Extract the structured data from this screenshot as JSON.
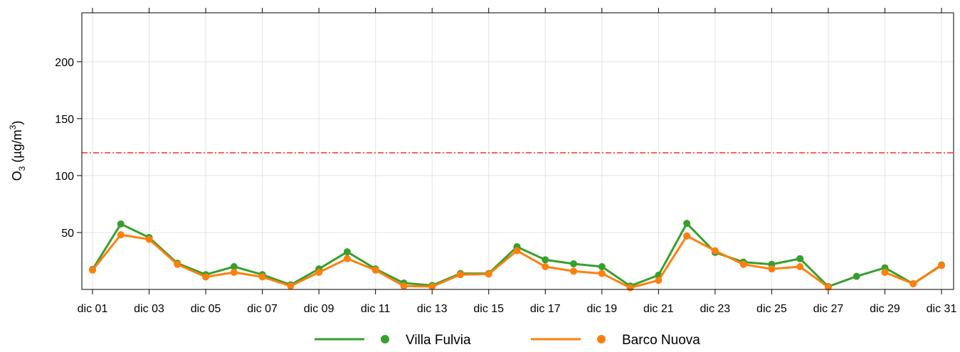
{
  "chart_data": {
    "type": "line",
    "y_label": {
      "base": "O",
      "sub": "3",
      "unit": " (µg/m",
      "sup": "3",
      "end": ")"
    },
    "categories": [
      "dic 01",
      null,
      "dic 03",
      null,
      "dic 05",
      null,
      "dic 07",
      null,
      "dic 09",
      null,
      "dic 11",
      null,
      "dic 13",
      null,
      "dic 15",
      null,
      "dic 17",
      null,
      "dic 19",
      null,
      "dic 21",
      null,
      "dic 23",
      null,
      "dic 25",
      null,
      "dic 27",
      null,
      "dic 29",
      null,
      "dic 31"
    ],
    "series": [
      {
        "name": "Villa Fulvia",
        "color": "#36a02c",
        "values": [
          17.5,
          57.5,
          45.6,
          23,
          13,
          20,
          13,
          4,
          18,
          33,
          18,
          5.6,
          3.5,
          14,
          14,
          37.5,
          26,
          22.5,
          20,
          3,
          12.5,
          58,
          32.5,
          24,
          22,
          27,
          2.5,
          11.5,
          19,
          5,
          21.5
        ]
      },
      {
        "name": "Barco Nuova",
        "color": "#ff7f0e",
        "values": [
          17,
          48,
          44,
          22,
          11,
          15,
          11,
          3,
          15,
          27,
          17,
          3,
          2.5,
          13,
          13.5,
          34,
          20,
          16,
          14,
          1.5,
          8,
          47,
          34,
          22,
          18,
          20,
          2,
          null,
          15,
          5,
          21
        ]
      }
    ],
    "threshold": {
      "value": 120,
      "color": "#ff0000"
    },
    "ylim": [
      0,
      243
    ],
    "yticks": [
      50,
      100,
      150,
      200
    ],
    "grid": true
  }
}
